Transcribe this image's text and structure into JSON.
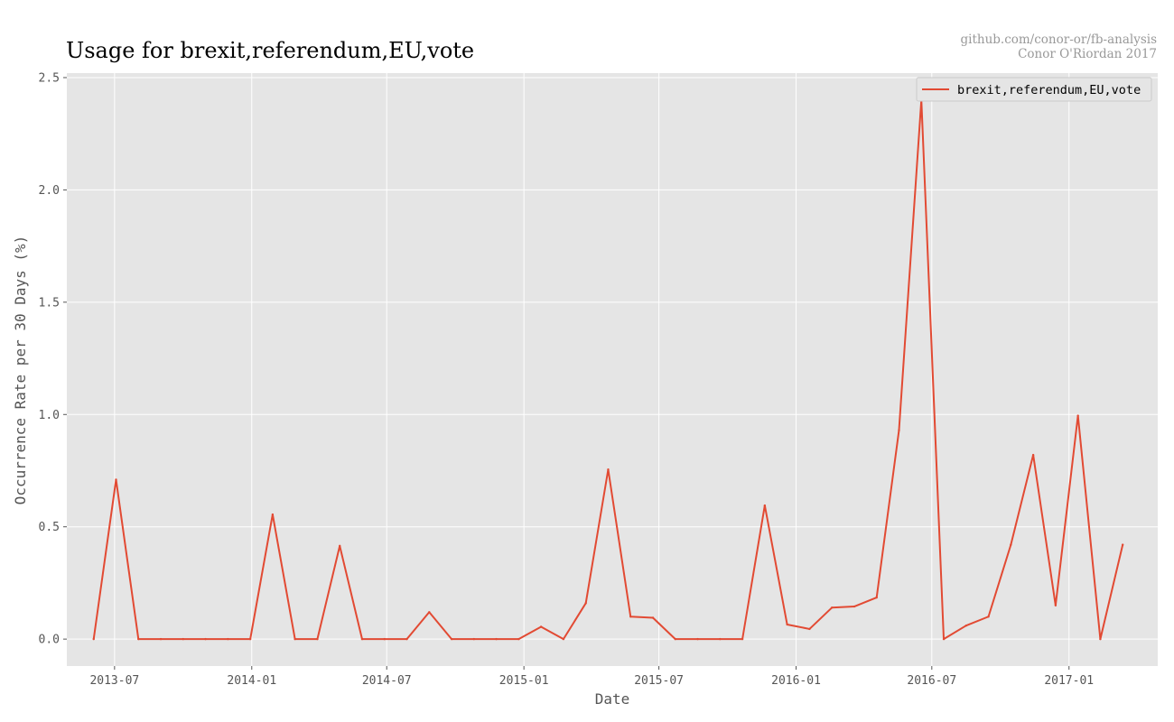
{
  "chart_data": {
    "type": "line",
    "title": "Usage for brexit,referendum,EU,vote",
    "credit_lines": [
      "github.com/conor-or/fb-analysis",
      "Conor O'Riordan 2017"
    ],
    "xlabel": "Date",
    "ylabel": "Occurrence Rate per 30 Days (%)",
    "xlim": [
      "2013-04-28",
      "2017-04-30"
    ],
    "ylim": [
      -0.12,
      2.52
    ],
    "x_ticks": [
      "2013-07",
      "2014-01",
      "2014-07",
      "2015-01",
      "2015-07",
      "2016-01",
      "2016-07",
      "2017-01"
    ],
    "y_ticks": [
      "0.0",
      "0.5",
      "1.0",
      "1.5",
      "2.0",
      "2.5"
    ],
    "grid": true,
    "legend_position": "top-right",
    "series": [
      {
        "name": "brexit,referendum,EU,vote",
        "color": "#e24a33",
        "x": [
          "2013-06-03",
          "2013-07-03",
          "2013-08-02",
          "2013-09-01",
          "2013-10-01",
          "2013-10-31",
          "2013-11-30",
          "2013-12-30",
          "2014-01-29",
          "2014-02-28",
          "2014-03-30",
          "2014-04-29",
          "2014-05-29",
          "2014-06-28",
          "2014-07-28",
          "2014-08-27",
          "2014-09-26",
          "2014-10-26",
          "2014-11-25",
          "2014-12-25",
          "2015-01-24",
          "2015-02-23",
          "2015-03-25",
          "2015-04-24",
          "2015-05-24",
          "2015-06-23",
          "2015-07-23",
          "2015-08-22",
          "2015-09-21",
          "2015-10-21",
          "2015-11-20",
          "2015-12-20",
          "2016-01-19",
          "2016-02-18",
          "2016-03-19",
          "2016-04-18",
          "2016-05-18",
          "2016-06-17",
          "2016-07-17",
          "2016-08-16",
          "2016-09-15",
          "2016-10-15",
          "2016-11-14",
          "2016-12-14",
          "2017-01-13",
          "2017-02-12",
          "2017-03-14"
        ],
        "values": [
          0.0,
          0.71,
          0.0,
          0.0,
          0.0,
          0.0,
          0.0,
          0.0,
          0.555,
          0.0,
          0.0,
          0.415,
          0.0,
          0.0,
          0.0,
          0.12,
          0.0,
          0.0,
          0.0,
          0.0,
          0.055,
          0.0,
          0.16,
          0.755,
          0.1,
          0.095,
          0.0,
          0.0,
          0.0,
          0.0,
          0.595,
          0.065,
          0.045,
          0.14,
          0.145,
          0.185,
          0.93,
          2.4,
          0.0,
          0.06,
          0.1,
          0.42,
          0.82,
          0.15,
          0.995,
          0.0,
          0.42
        ]
      }
    ]
  }
}
